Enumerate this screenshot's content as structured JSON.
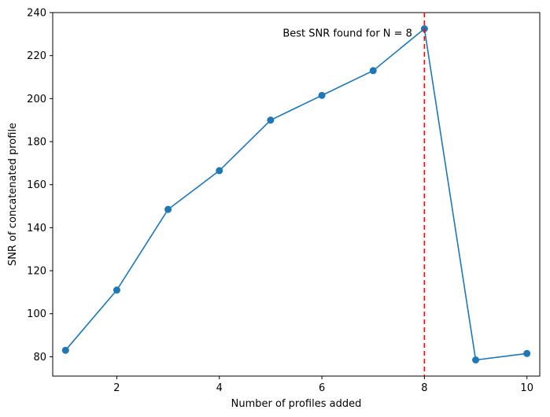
{
  "chart_data": {
    "type": "line",
    "xlabel": "Number of profiles added",
    "ylabel": "SNR of concatenated profile",
    "xlim": [
      0.75,
      10.25
    ],
    "ylim": [
      71,
      240
    ],
    "xticks": [
      2,
      4,
      6,
      8,
      10
    ],
    "yticks": [
      80,
      100,
      120,
      140,
      160,
      180,
      200,
      220,
      240
    ],
    "grid": false,
    "series": [
      {
        "x": [
          1,
          2,
          3,
          4,
          5,
          6,
          7,
          8,
          9,
          10
        ],
        "y": [
          83,
          111,
          148.5,
          166.5,
          190,
          201.5,
          213,
          232.5,
          78.5,
          81.5
        ],
        "color": "#1f77b4",
        "marker": "circle"
      }
    ],
    "vline": {
      "x": 8,
      "color": "#ff0000",
      "style": "dashed"
    },
    "annotation": {
      "text": "Best SNR found for N = 8",
      "x": 6.5,
      "y": 230.5
    }
  }
}
